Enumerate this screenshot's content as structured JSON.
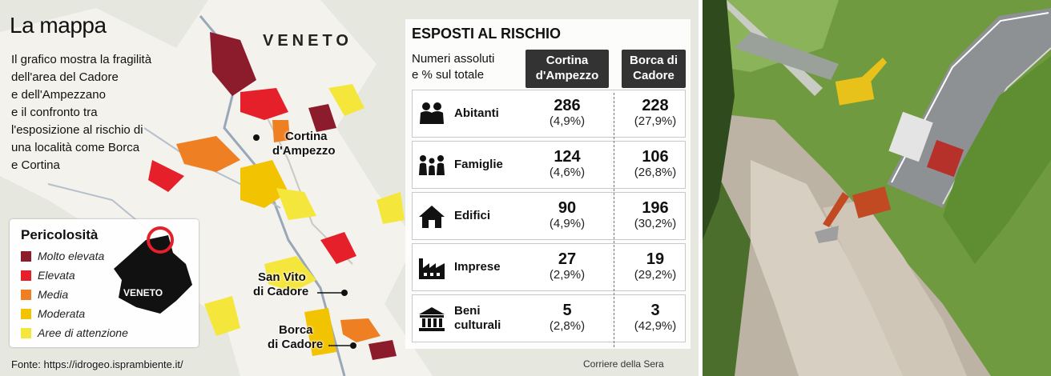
{
  "map": {
    "title": "La mappa",
    "description": [
      "Il grafico mostra la fragilità",
      "dell'area del Cadore",
      "e dell'Ampezzano",
      "e  il confronto tra",
      "l'esposizione al rischio di",
      "una località come Borca",
      "e Cortina"
    ],
    "region_label": "VENETO",
    "places": [
      {
        "lines": [
          "Cortina",
          "d'Ampezzo"
        ]
      },
      {
        "lines": [
          "San Vito",
          "di Cadore"
        ]
      },
      {
        "lines": [
          "Borca",
          "di Cadore"
        ]
      }
    ],
    "legend": {
      "title": "Pericolosità",
      "inset_label": "VENETO",
      "items": [
        {
          "label": "Molto elevata",
          "color": "#8c1b2c"
        },
        {
          "label": "Elevata",
          "color": "#e5202a"
        },
        {
          "label": "Media",
          "color": "#ee7f22"
        },
        {
          "label": "Moderata",
          "color": "#f2c300"
        },
        {
          "label": "Aree di attenzione",
          "color": "#f5e63c"
        }
      ]
    },
    "source": "Fonte: https://idrogeo.isprambiente.it/",
    "credit": "Corriere della Sera"
  },
  "chart_data": {
    "type": "table",
    "title": "ESPOSTI AL RISCHIO",
    "subtitle": [
      "Numeri assoluti",
      "e % sul totale"
    ],
    "columns": [
      {
        "name": "Cortina d'Ampezzo",
        "lines": [
          "Cortina",
          "d'Ampezzo"
        ]
      },
      {
        "name": "Borca di Cadore",
        "lines": [
          "Borca di",
          "Cadore"
        ]
      }
    ],
    "rows": [
      {
        "label": [
          "Abitanti"
        ],
        "icon": "people-icon",
        "values": [
          286,
          228
        ],
        "percent_text": [
          "(4,9%)",
          "(27,9%)"
        ]
      },
      {
        "label": [
          "Famiglie"
        ],
        "icon": "family-icon",
        "values": [
          124,
          106
        ],
        "percent_text": [
          "(4,6%)",
          "(26,8%)"
        ]
      },
      {
        "label": [
          "Edifici"
        ],
        "icon": "house-icon",
        "values": [
          90,
          196
        ],
        "percent_text": [
          "(4,9%)",
          "(30,2%)"
        ]
      },
      {
        "label": [
          "Imprese"
        ],
        "icon": "factory-icon",
        "values": [
          27,
          19
        ],
        "percent_text": [
          "(2,9%)",
          "(29,2%)"
        ]
      },
      {
        "label": [
          "Beni",
          "culturali"
        ],
        "icon": "museum-icon",
        "values": [
          5,
          3
        ],
        "percent_text": [
          "(2,8%)",
          "(42,9%)"
        ]
      }
    ]
  }
}
